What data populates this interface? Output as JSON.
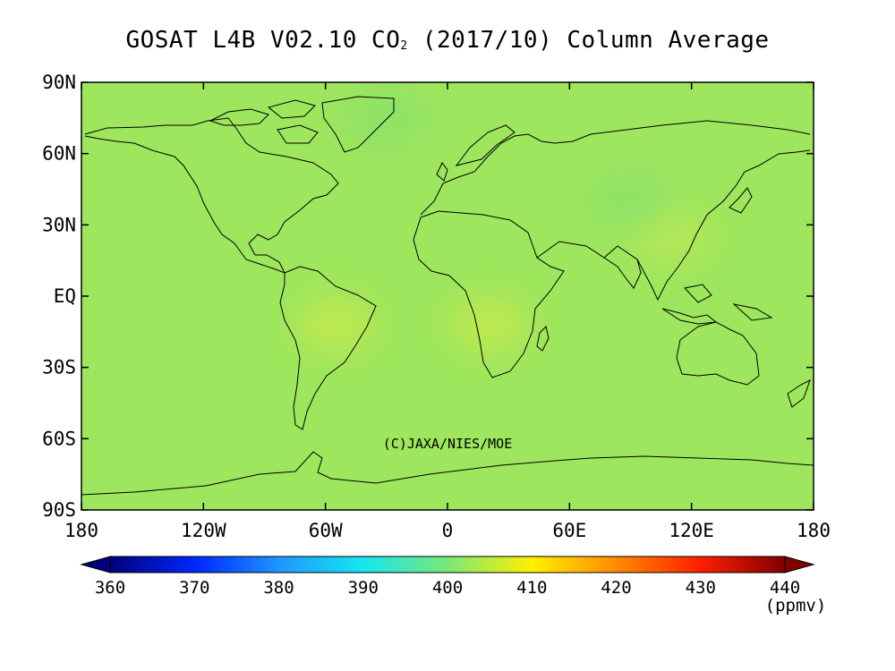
{
  "title": {
    "prefix": "GOSAT L4B V02.10 CO",
    "subscript": "2",
    "suffix": " (2017/10) Column Average"
  },
  "credit": "(C)JAXA/NIES/MOE",
  "y_ticks": [
    "90N",
    "60N",
    "30N",
    "EQ",
    "30S",
    "60S",
    "90S"
  ],
  "x_ticks": [
    "180",
    "120W",
    "60W",
    "0",
    "60E",
    "120E",
    "180"
  ],
  "colorbar": {
    "ticks": [
      "360",
      "370",
      "380",
      "390",
      "400",
      "410",
      "420",
      "430",
      "440"
    ],
    "unit": "(ppmv)",
    "range": [
      360,
      440
    ],
    "stops": [
      {
        "v": 360,
        "color": "#00007a"
      },
      {
        "v": 370,
        "color": "#0026ff"
      },
      {
        "v": 380,
        "color": "#1e96ff"
      },
      {
        "v": 390,
        "color": "#16e6ef"
      },
      {
        "v": 400,
        "color": "#7ae878"
      },
      {
        "v": 410,
        "color": "#fff000"
      },
      {
        "v": 420,
        "color": "#ff8a00"
      },
      {
        "v": 430,
        "color": "#ff1e00"
      },
      {
        "v": 440,
        "color": "#800000"
      }
    ]
  },
  "map": {
    "base_color": "#9ee65e",
    "lon_range": [
      -180,
      180
    ],
    "lat_range": [
      -90,
      90
    ],
    "anomalies": [
      {
        "lon": -55,
        "lat": -12,
        "color": "#c4ea4e"
      },
      {
        "lon": 20,
        "lat": -12,
        "color": "#c4ea4e"
      },
      {
        "lon": 110,
        "lat": 25,
        "color": "#b8e855"
      },
      {
        "lon": 90,
        "lat": 40,
        "color": "#8be26a"
      },
      {
        "lon": -30,
        "lat": 75,
        "color": "#8be26a"
      }
    ]
  }
}
